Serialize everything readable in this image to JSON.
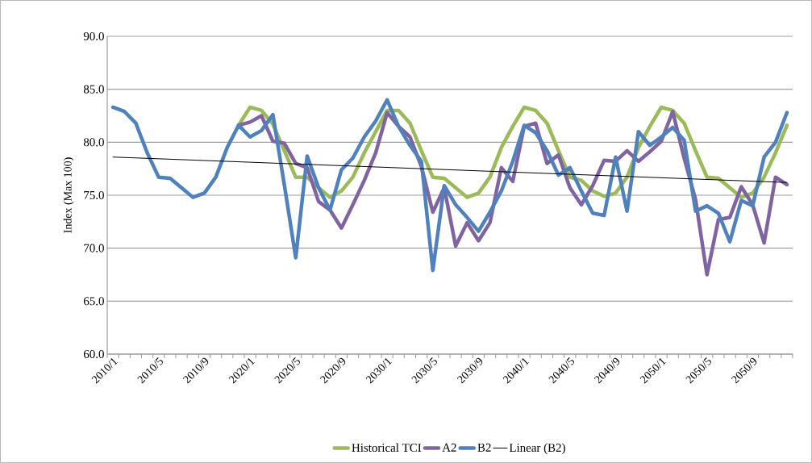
{
  "chart_data": {
    "type": "line",
    "ylabel": "Index (Max 100)",
    "categories": [
      "2010/1",
      null,
      null,
      null,
      "2010/5",
      null,
      null,
      null,
      "2010/9",
      null,
      null,
      null,
      "2020/1",
      null,
      null,
      null,
      "2020/5",
      null,
      null,
      null,
      "2020/9",
      null,
      null,
      null,
      "2030/1",
      null,
      null,
      null,
      "2030/5",
      null,
      null,
      null,
      "2030/9",
      null,
      null,
      null,
      "2040/1",
      null,
      null,
      null,
      "2040/5",
      null,
      null,
      null,
      "2040/9",
      null,
      null,
      null,
      "2050/1",
      null,
      null,
      null,
      "2050/5",
      null,
      null,
      null,
      "2050/9",
      null,
      null,
      null
    ],
    "ylim": [
      60,
      90
    ],
    "yticks": [
      {
        "value": 60,
        "label": "60.0"
      },
      {
        "value": 65,
        "label": "65.0"
      },
      {
        "value": 70,
        "label": "70.0"
      },
      {
        "value": 75,
        "label": "75.0"
      },
      {
        "value": 80,
        "label": "80.0"
      },
      {
        "value": 85,
        "label": "85.0"
      },
      {
        "value": 90,
        "label": "90.0"
      }
    ],
    "grid": "y",
    "legend": "bottom",
    "series": [
      {
        "name": "Historical TCI",
        "color": "#9bbb59",
        "line_style": "solid",
        "values": [
          null,
          null,
          null,
          null,
          null,
          null,
          null,
          null,
          null,
          null,
          null,
          81.6,
          83.3,
          83.0,
          81.7,
          79.2,
          76.7,
          76.7,
          75.7,
          74.8,
          75.4,
          76.7,
          79.0,
          81.0,
          83.0,
          83.0,
          81.8,
          79.2,
          76.7,
          76.6,
          75.7,
          74.8,
          75.2,
          76.7,
          79.5,
          81.5,
          83.3,
          83.0,
          81.8,
          79.2,
          76.7,
          76.4,
          75.4,
          74.9,
          75.2,
          76.7,
          79.5,
          81.5,
          83.3,
          83.0,
          81.8,
          79.2,
          76.7,
          76.6,
          75.7,
          74.8,
          75.2,
          76.7,
          79.0,
          81.6
        ]
      },
      {
        "name": "A2",
        "color": "#8064a2",
        "line_style": "solid",
        "values": [
          null,
          null,
          null,
          null,
          null,
          null,
          null,
          null,
          null,
          null,
          null,
          81.6,
          81.9,
          82.5,
          80.1,
          79.9,
          78.0,
          77.6,
          74.4,
          73.6,
          71.9,
          74.1,
          76.4,
          79.0,
          82.8,
          81.5,
          80.5,
          77.7,
          73.4,
          75.7,
          70.2,
          72.4,
          70.7,
          72.4,
          77.6,
          76.3,
          81.5,
          81.8,
          78.0,
          78.8,
          75.7,
          74.1,
          75.9,
          78.3,
          78.2,
          79.2,
          78.2,
          79.1,
          80.1,
          82.9,
          78.5,
          74.6,
          67.5,
          72.7,
          72.9,
          75.8,
          74.1,
          70.5,
          76.7,
          76.0
        ]
      },
      {
        "name": "B2",
        "color": "#4f81bd",
        "line_style": "solid",
        "values": [
          83.3,
          82.9,
          81.8,
          79.0,
          76.7,
          76.6,
          75.7,
          74.8,
          75.2,
          76.7,
          79.5,
          81.6,
          80.5,
          81.1,
          82.6,
          76.0,
          69.1,
          78.7,
          75.7,
          73.6,
          77.4,
          78.5,
          80.5,
          82.0,
          84.0,
          81.5,
          79.7,
          78.2,
          67.9,
          75.9,
          74.1,
          72.9,
          71.6,
          73.4,
          75.4,
          78.2,
          81.6,
          80.9,
          79.2,
          76.9,
          77.6,
          75.4,
          73.3,
          73.1,
          78.6,
          73.5,
          81.0,
          79.7,
          80.5,
          81.4,
          80.2,
          73.5,
          74.0,
          73.3,
          70.6,
          74.5,
          74.0,
          78.6,
          80.0,
          82.8
        ]
      },
      {
        "name": "Linear (B2)",
        "color": "#000000",
        "line_style": "solid",
        "values": [
          78.6,
          null,
          null,
          null,
          null,
          null,
          null,
          null,
          null,
          null,
          null,
          null,
          null,
          null,
          null,
          null,
          null,
          null,
          null,
          null,
          null,
          null,
          null,
          null,
          null,
          null,
          null,
          null,
          null,
          null,
          null,
          null,
          null,
          null,
          null,
          null,
          null,
          null,
          null,
          null,
          null,
          null,
          null,
          null,
          null,
          null,
          null,
          null,
          null,
          null,
          null,
          null,
          null,
          null,
          null,
          null,
          null,
          null,
          null,
          76.2
        ]
      }
    ]
  }
}
